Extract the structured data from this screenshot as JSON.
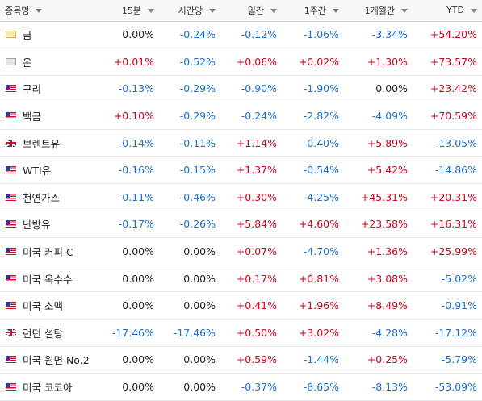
{
  "columns": {
    "name": "종목명",
    "m15": "15분",
    "hourly": "시간당",
    "daily": "일간",
    "weekly": "1주간",
    "monthly": "1개월간",
    "ytd": "YTD"
  },
  "colors": {
    "positive": "#d0021b",
    "negative": "#1a6fd1",
    "neutral": "#222222"
  },
  "rows": [
    {
      "name": "금",
      "flag": "gold-icon",
      "m15": "0.00%",
      "hourly": "-0.24%",
      "daily": "-0.12%",
      "weekly": "-1.06%",
      "monthly": "-3.34%",
      "ytd": "+54.20%"
    },
    {
      "name": "은",
      "flag": "silver-icon",
      "m15": "+0.01%",
      "hourly": "-0.52%",
      "daily": "+0.06%",
      "weekly": "+0.02%",
      "monthly": "+1.30%",
      "ytd": "+73.57%"
    },
    {
      "name": "구리",
      "flag": "us-flag-icon",
      "m15": "-0.13%",
      "hourly": "-0.29%",
      "daily": "-0.90%",
      "weekly": "-1.90%",
      "monthly": "0.00%",
      "ytd": "+23.42%"
    },
    {
      "name": "백금",
      "flag": "us-flag-icon",
      "m15": "+0.10%",
      "hourly": "-0.29%",
      "daily": "-0.24%",
      "weekly": "-2.82%",
      "monthly": "-4.09%",
      "ytd": "+70.59%"
    },
    {
      "name": "브렌트유",
      "flag": "uk-flag-icon",
      "m15": "-0.14%",
      "hourly": "-0.11%",
      "daily": "+1.14%",
      "weekly": "-0.40%",
      "monthly": "+5.89%",
      "ytd": "-13.05%"
    },
    {
      "name": "WTI유",
      "flag": "us-flag-icon",
      "m15": "-0.16%",
      "hourly": "-0.15%",
      "daily": "+1.37%",
      "weekly": "-0.54%",
      "monthly": "+5.42%",
      "ytd": "-14.86%"
    },
    {
      "name": "천연가스",
      "flag": "us-flag-icon",
      "m15": "-0.11%",
      "hourly": "-0.46%",
      "daily": "+0.30%",
      "weekly": "-4.25%",
      "monthly": "+45.31%",
      "ytd": "+20.31%"
    },
    {
      "name": "난방유",
      "flag": "us-flag-icon",
      "m15": "-0.17%",
      "hourly": "-0.26%",
      "daily": "+5.84%",
      "weekly": "+4.60%",
      "monthly": "+23.58%",
      "ytd": "+16.31%"
    },
    {
      "name": "미국 커피 C",
      "flag": "us-flag-icon",
      "m15": "0.00%",
      "hourly": "0.00%",
      "daily": "+0.07%",
      "weekly": "-4.70%",
      "monthly": "+1.36%",
      "ytd": "+25.99%"
    },
    {
      "name": "미국 옥수수",
      "flag": "us-flag-icon",
      "m15": "0.00%",
      "hourly": "0.00%",
      "daily": "+0.17%",
      "weekly": "+0.81%",
      "monthly": "+3.08%",
      "ytd": "-5.02%"
    },
    {
      "name": "미국 소맥",
      "flag": "us-flag-icon",
      "m15": "0.00%",
      "hourly": "0.00%",
      "daily": "+0.41%",
      "weekly": "+1.96%",
      "monthly": "+8.49%",
      "ytd": "-0.91%"
    },
    {
      "name": "런던 설탕",
      "flag": "uk-flag-icon",
      "m15": "-17.46%",
      "hourly": "-17.46%",
      "daily": "+0.50%",
      "weekly": "+3.02%",
      "monthly": "-4.28%",
      "ytd": "-17.12%"
    },
    {
      "name": "미국 원면 No.2",
      "flag": "us-flag-icon",
      "m15": "0.00%",
      "hourly": "0.00%",
      "daily": "+0.59%",
      "weekly": "-1.44%",
      "monthly": "+0.25%",
      "ytd": "-5.79%"
    },
    {
      "name": "미국 코코아",
      "flag": "us-flag-icon",
      "m15": "0.00%",
      "hourly": "0.00%",
      "daily": "-0.37%",
      "weekly": "-8.65%",
      "monthly": "-8.13%",
      "ytd": "-53.09%"
    }
  ]
}
